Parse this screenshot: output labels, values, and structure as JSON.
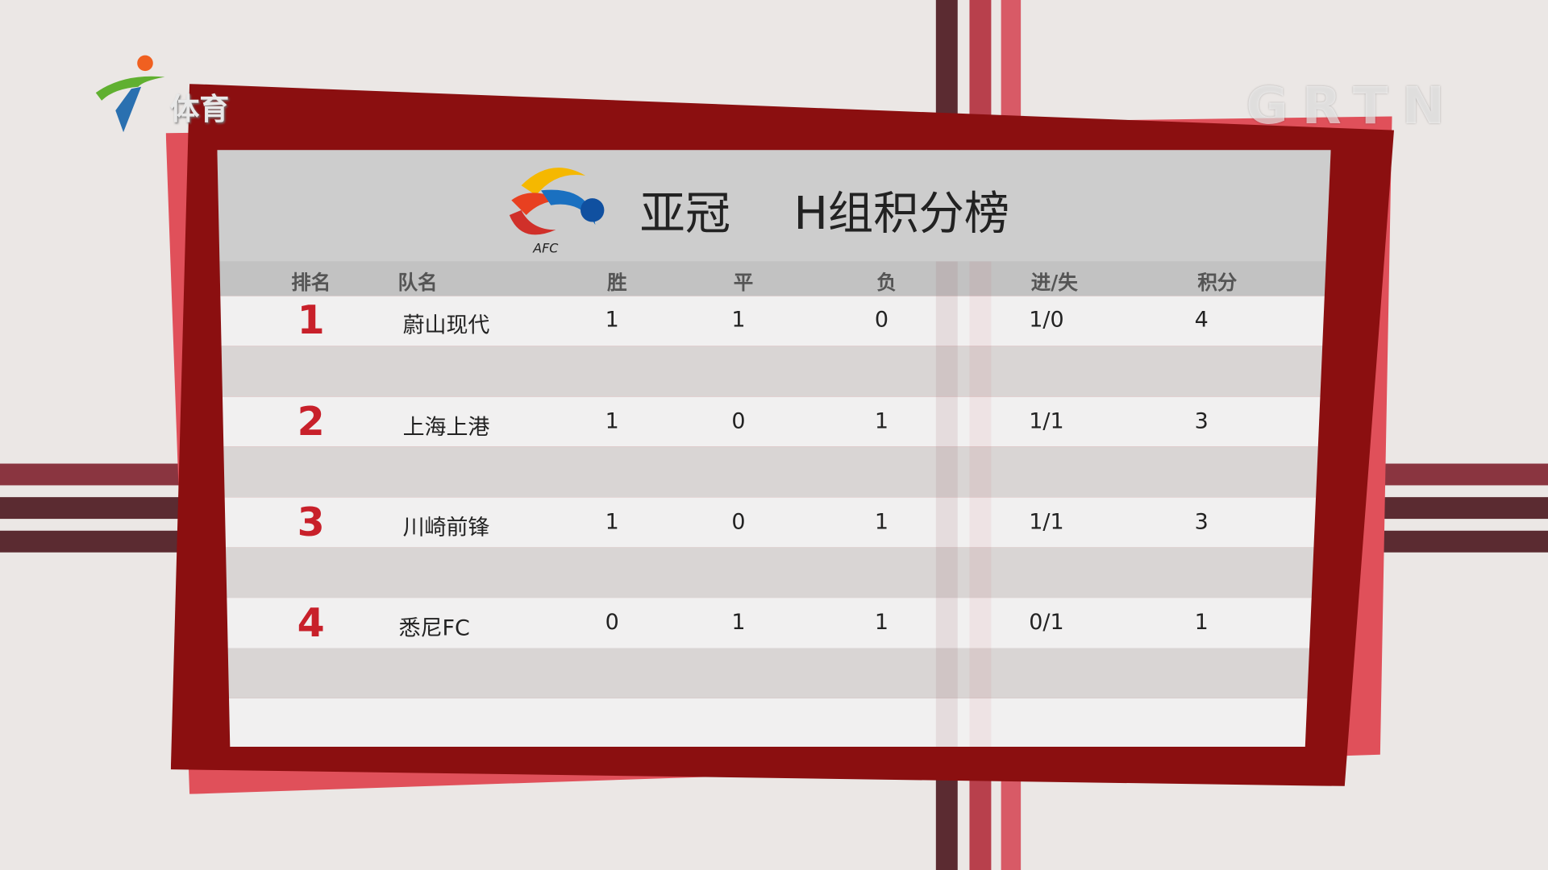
{
  "channel_logo": {
    "text": "体育"
  },
  "watermark": "GRTN",
  "title": {
    "competition": "亚冠",
    "group": "H组积分榜",
    "logo_text": "AFC"
  },
  "columns": [
    "排名",
    "队名",
    "胜",
    "平",
    "负",
    "进/失",
    "积分"
  ],
  "rows": [
    {
      "rank": "1",
      "team": "蔚山现代",
      "w": "1",
      "d": "1",
      "l": "0",
      "gf_ga": "1/0",
      "pts": "4"
    },
    {
      "rank": "2",
      "team": "上海上港",
      "w": "1",
      "d": "0",
      "l": "1",
      "gf_ga": "1/1",
      "pts": "3"
    },
    {
      "rank": "3",
      "team": "川崎前锋",
      "w": "1",
      "d": "0",
      "l": "1",
      "gf_ga": "1/1",
      "pts": "3"
    },
    {
      "rank": "4",
      "team": "悉尼FC",
      "w": "0",
      "d": "1",
      "l": "1",
      "gf_ga": "0/1",
      "pts": "1"
    }
  ],
  "colors": {
    "frame": "#8b0f10",
    "accent": "#e0505a",
    "rank": "#c8202a"
  }
}
